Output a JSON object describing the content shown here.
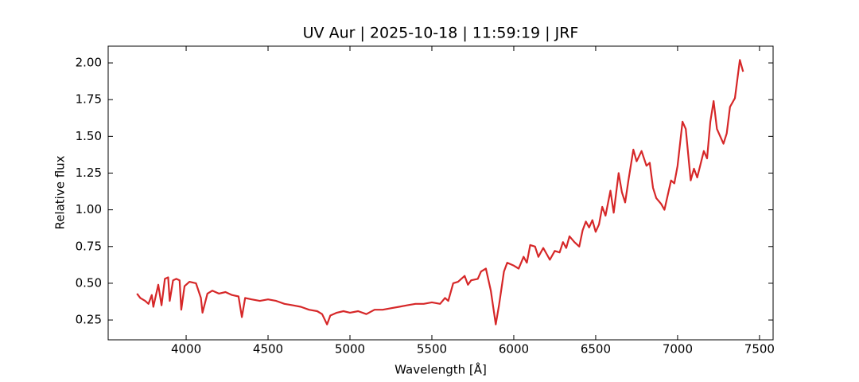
{
  "chart_data": {
    "type": "line",
    "title": "UV Aur | 2025-10-18 | 11:59:19 | JRF",
    "xlabel": "Wavelength [Å]",
    "ylabel": "Relative flux",
    "color": "#d62728",
    "x": [
      3700,
      3720,
      3750,
      3770,
      3790,
      3800,
      3830,
      3850,
      3870,
      3890,
      3900,
      3920,
      3940,
      3960,
      3970,
      3990,
      4020,
      4060,
      4090,
      4100,
      4130,
      4160,
      4200,
      4240,
      4280,
      4320,
      4340,
      4360,
      4400,
      4450,
      4500,
      4550,
      4600,
      4650,
      4700,
      4750,
      4800,
      4830,
      4860,
      4880,
      4920,
      4960,
      5000,
      5050,
      5100,
      5150,
      5200,
      5250,
      5300,
      5350,
      5400,
      5450,
      5500,
      5550,
      5580,
      5600,
      5630,
      5660,
      5700,
      5720,
      5740,
      5780,
      5800,
      5830,
      5860,
      5890,
      5910,
      5940,
      5960,
      6000,
      6030,
      6060,
      6080,
      6100,
      6130,
      6150,
      6180,
      6200,
      6220,
      6250,
      6280,
      6300,
      6320,
      6340,
      6370,
      6400,
      6420,
      6440,
      6460,
      6480,
      6500,
      6520,
      6540,
      6560,
      6590,
      6610,
      6640,
      6660,
      6680,
      6700,
      6730,
      6750,
      6780,
      6810,
      6830,
      6850,
      6870,
      6900,
      6920,
      6960,
      6980,
      7000,
      7030,
      7050,
      7080,
      7100,
      7120,
      7160,
      7180,
      7200,
      7220,
      7240,
      7260,
      7280,
      7300,
      7320,
      7350,
      7380,
      7400
    ],
    "values": [
      0.43,
      0.4,
      0.38,
      0.36,
      0.42,
      0.34,
      0.49,
      0.35,
      0.53,
      0.54,
      0.38,
      0.52,
      0.53,
      0.52,
      0.32,
      0.48,
      0.51,
      0.5,
      0.4,
      0.3,
      0.43,
      0.45,
      0.43,
      0.44,
      0.42,
      0.41,
      0.27,
      0.4,
      0.39,
      0.38,
      0.39,
      0.38,
      0.36,
      0.35,
      0.34,
      0.32,
      0.31,
      0.29,
      0.22,
      0.28,
      0.3,
      0.31,
      0.3,
      0.31,
      0.29,
      0.32,
      0.32,
      0.33,
      0.34,
      0.35,
      0.36,
      0.36,
      0.37,
      0.36,
      0.4,
      0.38,
      0.5,
      0.51,
      0.55,
      0.49,
      0.52,
      0.53,
      0.58,
      0.6,
      0.45,
      0.22,
      0.35,
      0.58,
      0.64,
      0.62,
      0.6,
      0.68,
      0.64,
      0.76,
      0.75,
      0.68,
      0.74,
      0.7,
      0.66,
      0.72,
      0.71,
      0.78,
      0.74,
      0.82,
      0.78,
      0.75,
      0.86,
      0.92,
      0.88,
      0.93,
      0.85,
      0.9,
      1.02,
      0.96,
      1.13,
      0.98,
      1.25,
      1.12,
      1.05,
      1.2,
      1.41,
      1.33,
      1.4,
      1.3,
      1.32,
      1.15,
      1.08,
      1.04,
      1.0,
      1.2,
      1.18,
      1.3,
      1.6,
      1.55,
      1.2,
      1.28,
      1.22,
      1.4,
      1.35,
      1.6,
      1.74,
      1.55,
      1.5,
      1.45,
      1.52,
      1.7,
      1.76,
      2.02,
      1.94
    ],
    "xlim": [
      3524,
      7583
    ],
    "ylim": [
      0.115,
      2.114
    ],
    "xticks": [
      4000,
      4500,
      5000,
      5500,
      6000,
      6500,
      7000,
      7500
    ],
    "yticks": [
      0.25,
      {
        "value": 0.5,
        "label": "0.50"
      },
      0.75,
      {
        "value": 1.0,
        "label": "1.00"
      },
      1.25,
      {
        "value": 1.5,
        "label": "1.50"
      },
      1.75,
      {
        "value": 2.0,
        "label": "2.00"
      }
    ]
  }
}
